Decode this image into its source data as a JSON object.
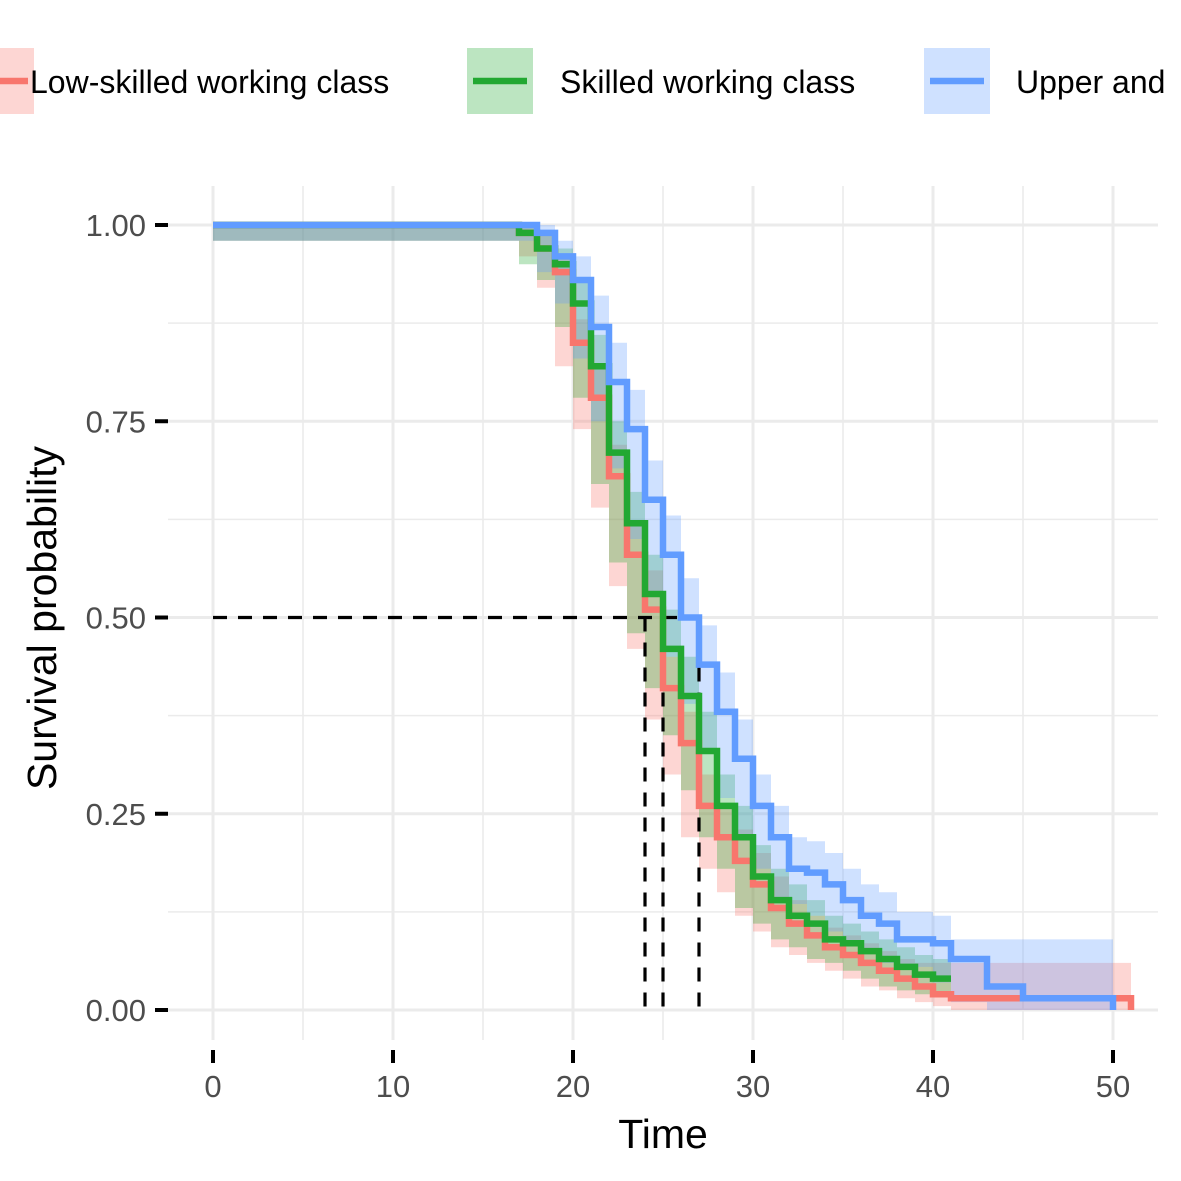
{
  "chart_data": {
    "type": "line",
    "step": true,
    "xlabel": "Time",
    "ylabel": "Survival probability",
    "xlim": [
      0,
      51
    ],
    "ylim": [
      0,
      1
    ],
    "x_ticks": [
      "0",
      "10",
      "20",
      "30",
      "40",
      "50"
    ],
    "y_ticks": [
      "0.00",
      "0.25",
      "0.50",
      "0.75",
      "1.00"
    ],
    "grid": true,
    "legend_position": "top",
    "median_line": {
      "y": 0.5,
      "x": [
        24,
        25,
        27
      ]
    },
    "series": [
      {
        "name": "Low-skilled working class",
        "color": "#F8766D",
        "x": [
          0,
          17,
          18,
          19,
          20,
          21,
          22,
          23,
          24,
          25,
          26,
          27,
          28,
          29,
          30,
          31,
          32,
          33,
          34,
          35,
          36,
          37,
          38,
          39,
          40,
          41,
          51
        ],
        "y": [
          1.0,
          0.99,
          0.97,
          0.94,
          0.85,
          0.78,
          0.68,
          0.58,
          0.51,
          0.41,
          0.34,
          0.26,
          0.22,
          0.19,
          0.16,
          0.13,
          0.11,
          0.095,
          0.08,
          0.07,
          0.06,
          0.05,
          0.04,
          0.03,
          0.02,
          0.015,
          0.0
        ],
        "lower": [
          1.0,
          0.98,
          0.96,
          0.92,
          0.82,
          0.74,
          0.64,
          0.54,
          0.46,
          0.37,
          0.3,
          0.22,
          0.18,
          0.15,
          0.12,
          0.1,
          0.08,
          0.07,
          0.06,
          0.05,
          0.04,
          0.03,
          0.025,
          0.015,
          0.01,
          0.005,
          0.0
        ],
        "upper": [
          1.0,
          1.0,
          0.99,
          0.96,
          0.88,
          0.82,
          0.72,
          0.62,
          0.56,
          0.45,
          0.38,
          0.3,
          0.26,
          0.23,
          0.2,
          0.17,
          0.14,
          0.12,
          0.105,
          0.095,
          0.085,
          0.075,
          0.065,
          0.06,
          0.06,
          0.06,
          0.06
        ]
      },
      {
        "name": "Skilled working class",
        "color": "#22A832",
        "x": [
          0,
          17,
          18,
          19,
          20,
          21,
          22,
          23,
          24,
          25,
          26,
          27,
          28,
          29,
          30,
          31,
          32,
          33,
          34,
          35,
          36,
          37,
          38,
          39,
          40,
          41
        ],
        "y": [
          1.0,
          0.99,
          0.97,
          0.95,
          0.9,
          0.82,
          0.71,
          0.62,
          0.53,
          0.46,
          0.4,
          0.33,
          0.26,
          0.22,
          0.17,
          0.14,
          0.12,
          0.11,
          0.09,
          0.085,
          0.075,
          0.065,
          0.055,
          0.045,
          0.04,
          0.04
        ],
        "lower": [
          1.0,
          0.98,
          0.95,
          0.93,
          0.87,
          0.78,
          0.67,
          0.57,
          0.48,
          0.41,
          0.35,
          0.28,
          0.22,
          0.18,
          0.13,
          0.11,
          0.09,
          0.08,
          0.065,
          0.06,
          0.05,
          0.04,
          0.03,
          0.025,
          0.02,
          0.02
        ],
        "upper": [
          1.0,
          1.0,
          0.99,
          0.97,
          0.93,
          0.86,
          0.75,
          0.66,
          0.58,
          0.51,
          0.45,
          0.38,
          0.3,
          0.26,
          0.21,
          0.18,
          0.16,
          0.14,
          0.12,
          0.11,
          0.1,
          0.09,
          0.08,
          0.07,
          0.065,
          0.065
        ]
      },
      {
        "name": "Upper and",
        "color": "#619CFF",
        "x": [
          0,
          18,
          19,
          20,
          21,
          22,
          23,
          24,
          25,
          26,
          27,
          28,
          29,
          30,
          31,
          32,
          33,
          34,
          35,
          36,
          37,
          38,
          40,
          41,
          43,
          45,
          50
        ],
        "y": [
          1.0,
          0.99,
          0.96,
          0.93,
          0.87,
          0.8,
          0.74,
          0.65,
          0.58,
          0.5,
          0.44,
          0.38,
          0.32,
          0.26,
          0.22,
          0.18,
          0.175,
          0.16,
          0.14,
          0.12,
          0.11,
          0.09,
          0.085,
          0.065,
          0.03,
          0.015,
          0.0
        ],
        "lower": [
          1.0,
          0.98,
          0.94,
          0.9,
          0.83,
          0.75,
          0.69,
          0.6,
          0.53,
          0.45,
          0.39,
          0.33,
          0.27,
          0.22,
          0.18,
          0.14,
          0.135,
          0.12,
          0.1,
          0.085,
          0.075,
          0.06,
          0.055,
          0.035,
          0.01,
          0.0,
          0.0
        ],
        "upper": [
          1.0,
          1.0,
          0.98,
          0.96,
          0.91,
          0.85,
          0.79,
          0.7,
          0.63,
          0.55,
          0.49,
          0.43,
          0.37,
          0.3,
          0.26,
          0.22,
          0.215,
          0.2,
          0.18,
          0.16,
          0.15,
          0.125,
          0.12,
          0.09,
          0.09,
          0.09,
          0.09
        ]
      }
    ]
  }
}
